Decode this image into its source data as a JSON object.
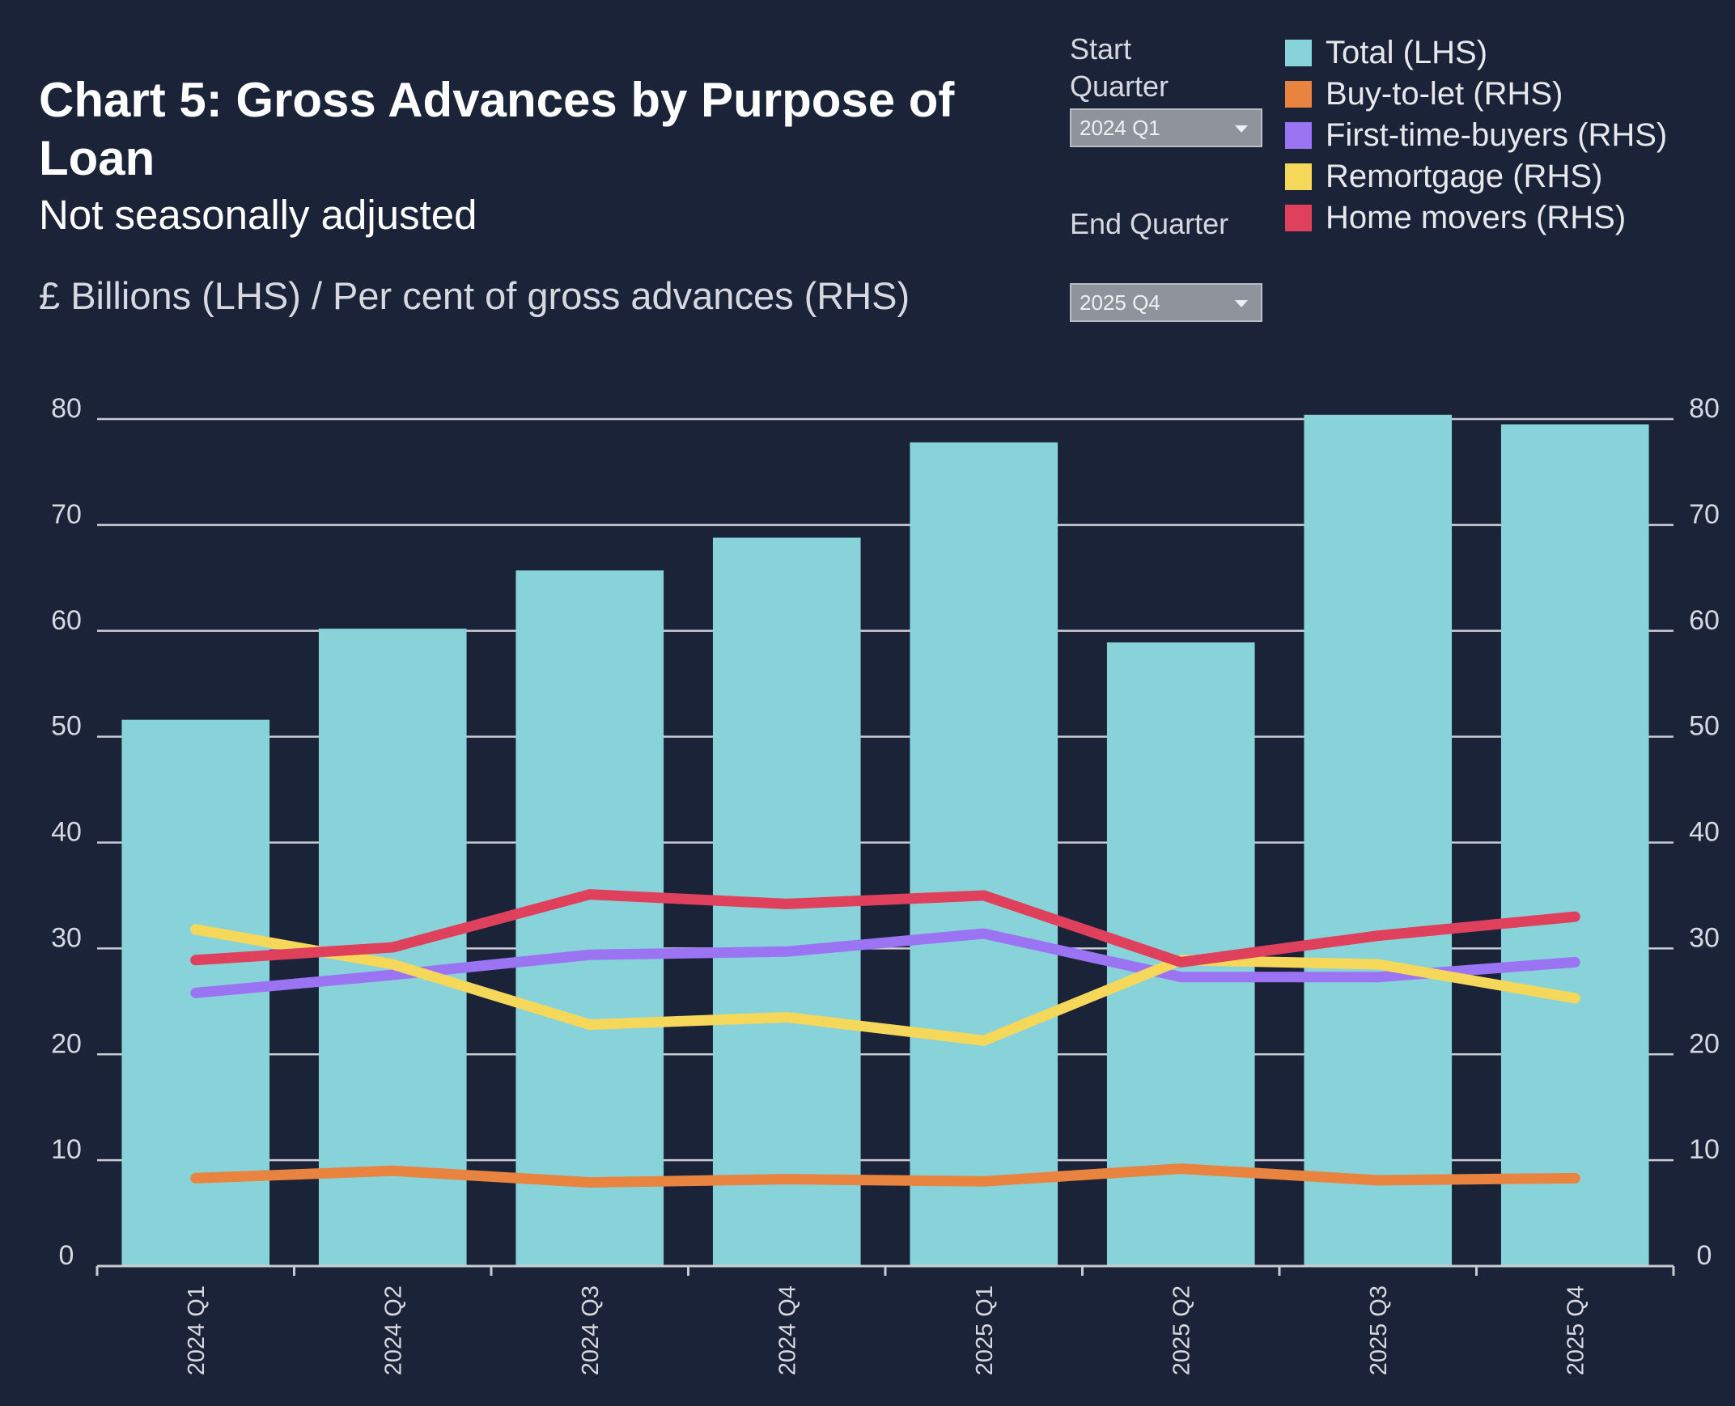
{
  "header": {
    "title": "Chart 5: Gross Advances by Purpose of Loan",
    "subtitle": "Not seasonally adjusted",
    "units": "£ Billions (LHS) / Per cent of gross advances (RHS)"
  },
  "controls": {
    "start_label": "Start Quarter",
    "start_value": "2024 Q1",
    "end_label": "End Quarter",
    "end_value": "2025 Q4"
  },
  "colors": {
    "background": "#1b2339",
    "grid": "#c9ccd3",
    "axis": "#c9ccd3"
  },
  "chart_data": {
    "type": "bar",
    "title": "Chart 5: Gross Advances by Purpose of Loan",
    "subtitle": "Not seasonally adjusted",
    "ylabel": "£ Billions (LHS) / Per cent of gross advances (RHS)",
    "categories": [
      "2024 Q1",
      "2024 Q2",
      "2024 Q3",
      "2024 Q4",
      "2025 Q1",
      "2025 Q2",
      "2025 Q3",
      "2025 Q4"
    ],
    "ylim": [
      0,
      80
    ],
    "yticks": [
      0,
      10,
      20,
      30,
      40,
      50,
      60,
      70,
      80
    ],
    "y2lim": [
      0,
      80
    ],
    "y2ticks": [
      0,
      10,
      20,
      30,
      40,
      50,
      60,
      70,
      80
    ],
    "grid": true,
    "legend_position": "top-right",
    "series": [
      {
        "name": "Total (LHS)",
        "type": "bar",
        "axis": "left",
        "color": "#88d3d9",
        "values": [
          51.6,
          60.2,
          65.7,
          68.8,
          77.8,
          58.9,
          80.4,
          79.5
        ]
      },
      {
        "name": "Buy-to-let (RHS)",
        "type": "line",
        "axis": "right",
        "color": "#e8843f",
        "values": [
          8.3,
          9.0,
          7.9,
          8.2,
          8.0,
          9.2,
          8.1,
          8.3
        ]
      },
      {
        "name": "First-time-buyers (RHS)",
        "type": "line",
        "axis": "right",
        "color": "#9a74f2",
        "values": [
          25.8,
          27.5,
          29.4,
          29.7,
          31.4,
          27.3,
          27.3,
          28.7
        ]
      },
      {
        "name": "Remortgage (RHS)",
        "type": "line",
        "axis": "right",
        "color": "#f5d85a",
        "values": [
          31.8,
          28.5,
          22.8,
          23.5,
          21.3,
          28.9,
          28.5,
          25.3
        ]
      },
      {
        "name": "Home movers (RHS)",
        "type": "line",
        "axis": "right",
        "color": "#df405c",
        "values": [
          28.9,
          30.1,
          35.1,
          34.2,
          35.0,
          28.7,
          31.2,
          33.0
        ]
      }
    ]
  }
}
